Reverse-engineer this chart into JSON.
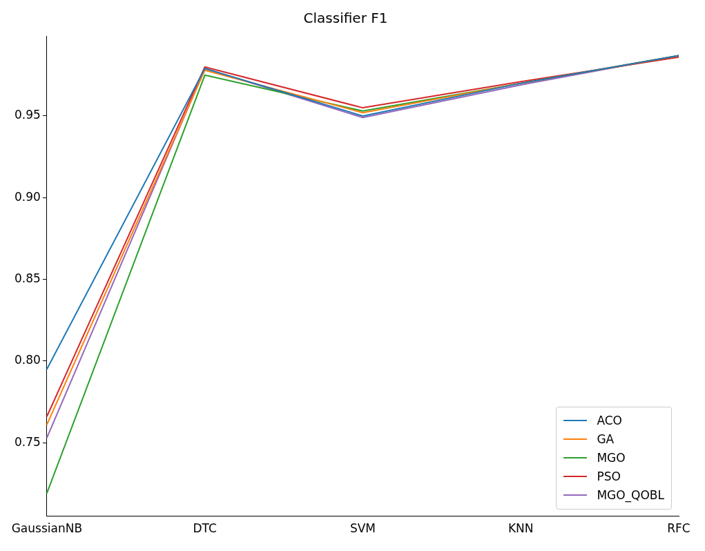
{
  "chart_data": {
    "type": "line",
    "title": "Classifier F1",
    "categories": [
      "GaussianNB",
      "DTC",
      "SVM",
      "KNN",
      "RFC"
    ],
    "ylim": [
      0.705,
      0.999
    ],
    "yticks": [
      {
        "value": 0.75,
        "label": "0.75"
      },
      {
        "value": 0.8,
        "label": "0.80"
      },
      {
        "value": 0.85,
        "label": "0.85"
      },
      {
        "value": 0.9,
        "label": "0.90"
      },
      {
        "value": 0.95,
        "label": "0.95"
      }
    ],
    "grid": false,
    "legend": "bottom right",
    "marker": "none",
    "line_style": "solid",
    "series": [
      {
        "name": "ACO",
        "color": "#1f77b4",
        "values": [
          0.795,
          0.979,
          0.95,
          0.97,
          0.987
        ]
      },
      {
        "name": "GA",
        "color": "#ff7f0e",
        "values": [
          0.761,
          0.978,
          0.952,
          0.97,
          0.987
        ]
      },
      {
        "name": "MGO",
        "color": "#2ca02c",
        "values": [
          0.719,
          0.975,
          0.953,
          0.97,
          0.987
        ]
      },
      {
        "name": "PSO",
        "color": "#d62728",
        "values": [
          0.766,
          0.98,
          0.955,
          0.971,
          0.986
        ]
      },
      {
        "name": "MGO_QOBL",
        "color": "#9467bd",
        "values": [
          0.753,
          0.979,
          0.949,
          0.969,
          0.987
        ]
      }
    ]
  }
}
